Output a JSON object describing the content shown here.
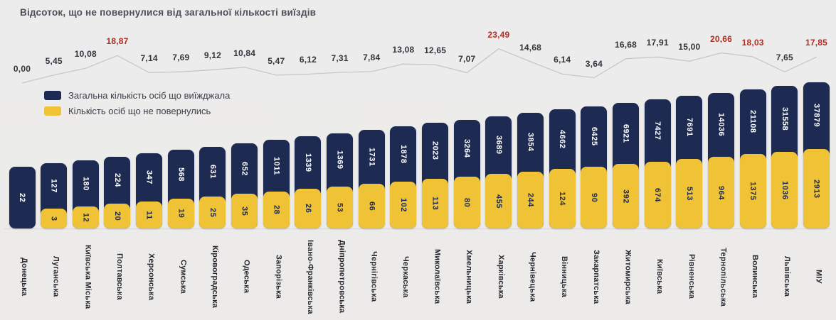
{
  "title": "Відсоток, що не повернулися від загальної кількості виїздів",
  "legend": [
    {
      "label": "Загальна кількість осіб що виїжджала",
      "color": "#1d2b52"
    },
    {
      "label": "Кількість осіб що не повернулись",
      "color": "#f0c235"
    }
  ],
  "colors": {
    "background": "#edecec",
    "total_bar": "#1d2b52",
    "returned_bar": "#f0c235",
    "percent_normal": "#32353c",
    "percent_highlight": "#b02d21",
    "trend_line": "#c9c7c6"
  },
  "chart_data": {
    "type": "bar",
    "title": "Відсоток, що не повернулися від загальної кількості виїздів",
    "xlabel": "",
    "ylabel": "",
    "grid": false,
    "legend_position": "top-left",
    "categories": [
      "Донецька",
      "Луганська",
      "Київська Міська",
      "Полтавська",
      "Херсонська",
      "Сумська",
      "Кіровоградська",
      "Одеська",
      "Запорізька",
      "Івано-Франківська",
      "Дніпропетровська",
      "Чернігівська",
      "Черкаська",
      "Миколаївська",
      "Хмельницька",
      "Харківська",
      "Чернівецька",
      "Вінницька",
      "Закарпатська",
      "Житомирська",
      "Київська",
      "Рівненська",
      "Тернопільська",
      "Волинська",
      "Львівська",
      "МІУ"
    ],
    "series": [
      {
        "name": "Загальна кількість осіб що виїжджала",
        "values": [
          22,
          127,
          180,
          224,
          347,
          568,
          631,
          652,
          1011,
          1339,
          1369,
          1731,
          1878,
          2023,
          3264,
          3689,
          3854,
          4662,
          6425,
          6921,
          7427,
          7691,
          14036,
          21108,
          31558,
          37879
        ]
      },
      {
        "name": "Кількість осіб що не повернулись",
        "values": [
          0,
          3,
          12,
          20,
          11,
          19,
          25,
          35,
          28,
          26,
          53,
          66,
          102,
          113,
          80,
          455,
          244,
          124,
          90,
          392,
          674,
          513,
          964,
          1375,
          1036,
          2913
        ]
      },
      {
        "name": "Відсоток, що не повернулися (%)",
        "values": [
          0.0,
          5.45,
          10.08,
          18.87,
          7.14,
          7.69,
          9.12,
          10.84,
          5.47,
          6.12,
          7.31,
          7.84,
          13.08,
          12.65,
          7.07,
          23.49,
          14.68,
          6.14,
          3.64,
          16.68,
          17.91,
          15.0,
          20.66,
          18.03,
          7.65,
          17.85
        ]
      }
    ],
    "percent_labels": [
      "0,00",
      "5,45",
      "10,08",
      "18,87",
      "7,14",
      "7,69",
      "9,12",
      "10,84",
      "5,47",
      "6,12",
      "7,31",
      "7,84",
      "13,08",
      "12,65",
      "7,07",
      "23,49",
      "14,68",
      "6,14",
      "3,64",
      "16,68",
      "17,91",
      "15,00",
      "20,66",
      "18,03",
      "7,65",
      "17,85"
    ],
    "percent_red": [
      false,
      false,
      false,
      true,
      false,
      false,
      false,
      false,
      false,
      false,
      false,
      false,
      false,
      false,
      false,
      true,
      false,
      false,
      false,
      false,
      false,
      false,
      true,
      true,
      false,
      true
    ]
  }
}
